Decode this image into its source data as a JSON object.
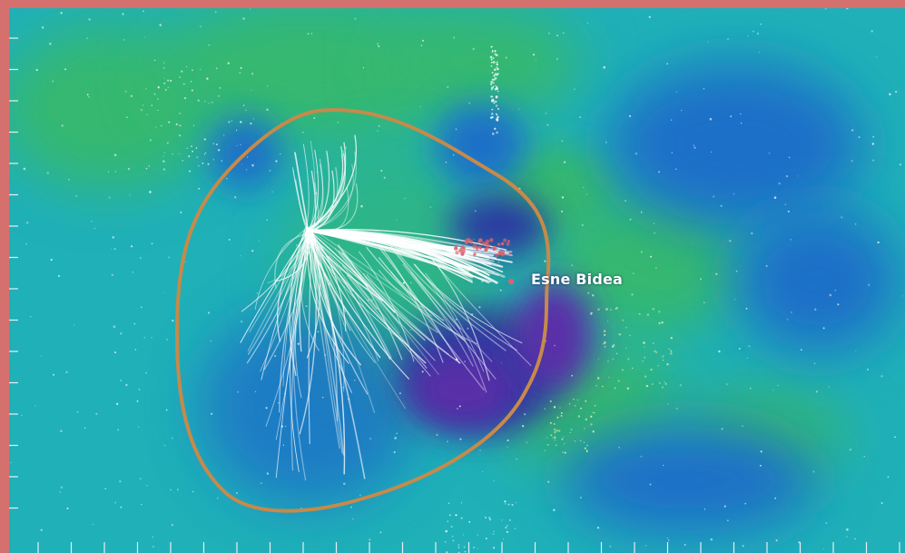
{
  "image": {
    "annotation_label": "Esne Bidea",
    "colors": {
      "frame": "#d4716f",
      "background_teal": "#1fb0b8",
      "green_region": "#35b870",
      "blue_region": "#1f6fc8",
      "deep_blue_region": "#2a3aa0",
      "violet_region": "#5a2ea8",
      "boundary_line": "#c68a4a",
      "flow_lines": "#ffffff",
      "marker_dots": "#e06070",
      "tick_marks": "#e8f0f0"
    },
    "left_axis_tick_count": 16,
    "bottom_axis_tick_count": 27
  }
}
